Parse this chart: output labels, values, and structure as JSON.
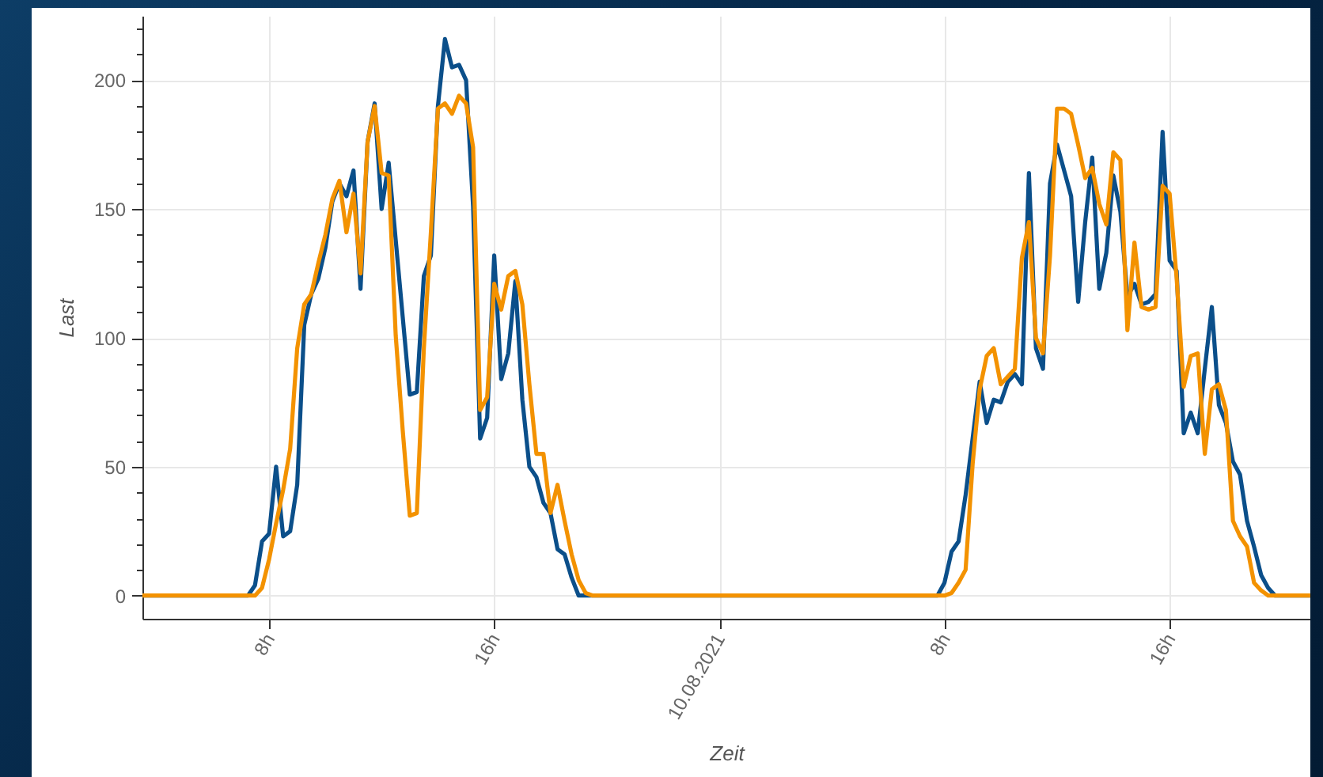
{
  "chart_data": {
    "type": "line",
    "xlabel": "Zeit",
    "ylabel": "Last",
    "x": [
      "2021-08-09T03:30",
      "2021-08-09T07:00",
      "2021-08-09T07:15",
      "2021-08-09T07:30",
      "2021-08-09T07:45",
      "2021-08-09T08:00",
      "2021-08-09T08:15",
      "2021-08-09T08:30",
      "2021-08-09T08:45",
      "2021-08-09T09:00",
      "2021-08-09T09:15",
      "2021-08-09T09:30",
      "2021-08-09T09:45",
      "2021-08-09T10:00",
      "2021-08-09T10:15",
      "2021-08-09T10:30",
      "2021-08-09T10:45",
      "2021-08-09T11:00",
      "2021-08-09T11:15",
      "2021-08-09T11:30",
      "2021-08-09T11:45",
      "2021-08-09T12:00",
      "2021-08-09T12:15",
      "2021-08-09T12:30",
      "2021-08-09T12:45",
      "2021-08-09T13:00",
      "2021-08-09T13:15",
      "2021-08-09T13:30",
      "2021-08-09T13:45",
      "2021-08-09T14:00",
      "2021-08-09T14:15",
      "2021-08-09T14:30",
      "2021-08-09T14:45",
      "2021-08-09T15:00",
      "2021-08-09T15:15",
      "2021-08-09T15:30",
      "2021-08-09T15:45",
      "2021-08-09T16:00",
      "2021-08-09T16:15",
      "2021-08-09T16:30",
      "2021-08-09T16:45",
      "2021-08-09T17:00",
      "2021-08-09T17:15",
      "2021-08-09T17:30",
      "2021-08-09T17:45",
      "2021-08-09T18:00",
      "2021-08-09T18:15",
      "2021-08-09T18:30",
      "2021-08-09T18:45",
      "2021-08-09T19:00",
      "2021-08-09T19:15",
      "2021-08-09T19:30",
      "2021-08-10T07:30",
      "2021-08-10T07:45",
      "2021-08-10T08:00",
      "2021-08-10T08:15",
      "2021-08-10T08:30",
      "2021-08-10T08:45",
      "2021-08-10T09:00",
      "2021-08-10T09:15",
      "2021-08-10T09:30",
      "2021-08-10T09:45",
      "2021-08-10T10:00",
      "2021-08-10T10:15",
      "2021-08-10T10:30",
      "2021-08-10T10:45",
      "2021-08-10T11:00",
      "2021-08-10T11:15",
      "2021-08-10T11:30",
      "2021-08-10T11:45",
      "2021-08-10T12:00",
      "2021-08-10T12:15",
      "2021-08-10T12:30",
      "2021-08-10T12:45",
      "2021-08-10T13:00",
      "2021-08-10T13:15",
      "2021-08-10T13:30",
      "2021-08-10T13:45",
      "2021-08-10T14:00",
      "2021-08-10T14:15",
      "2021-08-10T14:30",
      "2021-08-10T14:45",
      "2021-08-10T15:00",
      "2021-08-10T15:15",
      "2021-08-10T15:30",
      "2021-08-10T15:45",
      "2021-08-10T16:00",
      "2021-08-10T16:15",
      "2021-08-10T16:30",
      "2021-08-10T16:45",
      "2021-08-10T17:00",
      "2021-08-10T17:15",
      "2021-08-10T17:30",
      "2021-08-10T17:45",
      "2021-08-10T18:00",
      "2021-08-10T18:15",
      "2021-08-10T18:30",
      "2021-08-10T18:45",
      "2021-08-10T19:00",
      "2021-08-10T19:15",
      "2021-08-10T19:30",
      "2021-08-10T19:45",
      "2021-08-10T20:00",
      "2021-08-10T21:00"
    ],
    "series": [
      {
        "color": "#0b4f8a",
        "values": [
          0,
          0,
          0,
          4,
          21,
          24,
          50,
          23,
          25,
          43,
          105,
          117,
          123,
          135,
          153,
          160,
          155,
          165,
          119,
          176,
          191,
          150,
          168,
          138,
          108,
          78,
          79,
          124,
          132,
          190,
          216,
          205,
          206,
          200,
          151,
          61,
          69,
          132,
          84,
          94,
          122,
          76,
          50,
          46,
          36,
          32,
          18,
          16,
          7,
          0,
          0,
          0,
          0,
          0,
          5,
          17,
          21,
          39,
          61,
          83,
          67,
          76,
          75,
          83,
          86,
          82,
          164,
          96,
          88,
          160,
          175,
          165,
          155,
          114,
          145,
          170,
          119,
          133,
          163,
          149,
          116,
          121,
          113,
          114,
          117,
          180,
          130,
          126,
          63,
          71,
          63,
          88,
          112,
          74,
          67,
          52,
          47,
          29,
          19,
          8,
          3,
          0,
          0,
          0
        ]
      },
      {
        "color": "#f39200",
        "values": [
          0,
          0,
          0,
          0,
          3,
          14,
          28,
          41,
          57,
          96,
          113,
          117,
          129,
          140,
          154,
          161,
          141,
          156,
          125,
          176,
          190,
          164,
          163,
          101,
          64,
          31,
          32,
          96,
          141,
          189,
          191,
          187,
          194,
          191,
          174,
          72,
          77,
          121,
          111,
          124,
          126,
          113,
          82,
          55,
          55,
          32,
          43,
          29,
          16,
          6,
          1,
          0,
          0,
          0,
          0,
          1,
          5,
          10,
          51,
          80,
          93,
          96,
          82,
          85,
          88,
          131,
          145,
          100,
          94,
          132,
          189,
          189,
          187,
          175,
          162,
          166,
          152,
          144,
          172,
          169,
          103,
          137,
          112,
          111,
          112,
          159,
          156,
          123,
          81,
          93,
          94,
          55,
          80,
          82,
          72,
          29,
          23,
          19,
          5,
          2,
          0,
          0,
          0,
          0
        ]
      }
    ],
    "xlim": [
      "2021-08-09T03:30",
      "2021-08-10T21:00"
    ],
    "xticks": [
      {
        "value": "2021-08-09T08:00",
        "label": "8h"
      },
      {
        "value": "2021-08-09T16:00",
        "label": "16h"
      },
      {
        "value": "2021-08-10T00:00",
        "label": "10.08.2021"
      },
      {
        "value": "2021-08-10T08:00",
        "label": "8h"
      },
      {
        "value": "2021-08-10T16:00",
        "label": "16h"
      }
    ],
    "ylim": [
      -9,
      225
    ],
    "yticks": [
      0,
      {
        "value": 10,
        "label": null
      },
      {
        "value": 20,
        "label": null
      },
      {
        "value": 30,
        "label": null
      },
      {
        "value": 40,
        "label": null
      },
      50,
      {
        "value": 60,
        "label": null
      },
      {
        "value": 70,
        "label": null
      },
      {
        "value": 80,
        "label": null
      },
      {
        "value": 90,
        "label": null
      },
      100,
      {
        "value": 110,
        "label": null
      },
      {
        "value": 120,
        "label": null
      },
      {
        "value": 130,
        "label": null
      },
      {
        "value": 140,
        "label": null
      },
      150,
      {
        "value": 160,
        "label": null
      },
      {
        "value": 170,
        "label": null
      },
      {
        "value": 180,
        "label": null
      },
      {
        "value": 190,
        "label": null
      },
      200,
      {
        "value": 210,
        "label": null
      },
      {
        "value": 220,
        "label": null
      }
    ],
    "grid": true,
    "marker": "none",
    "line_style": "solid"
  }
}
